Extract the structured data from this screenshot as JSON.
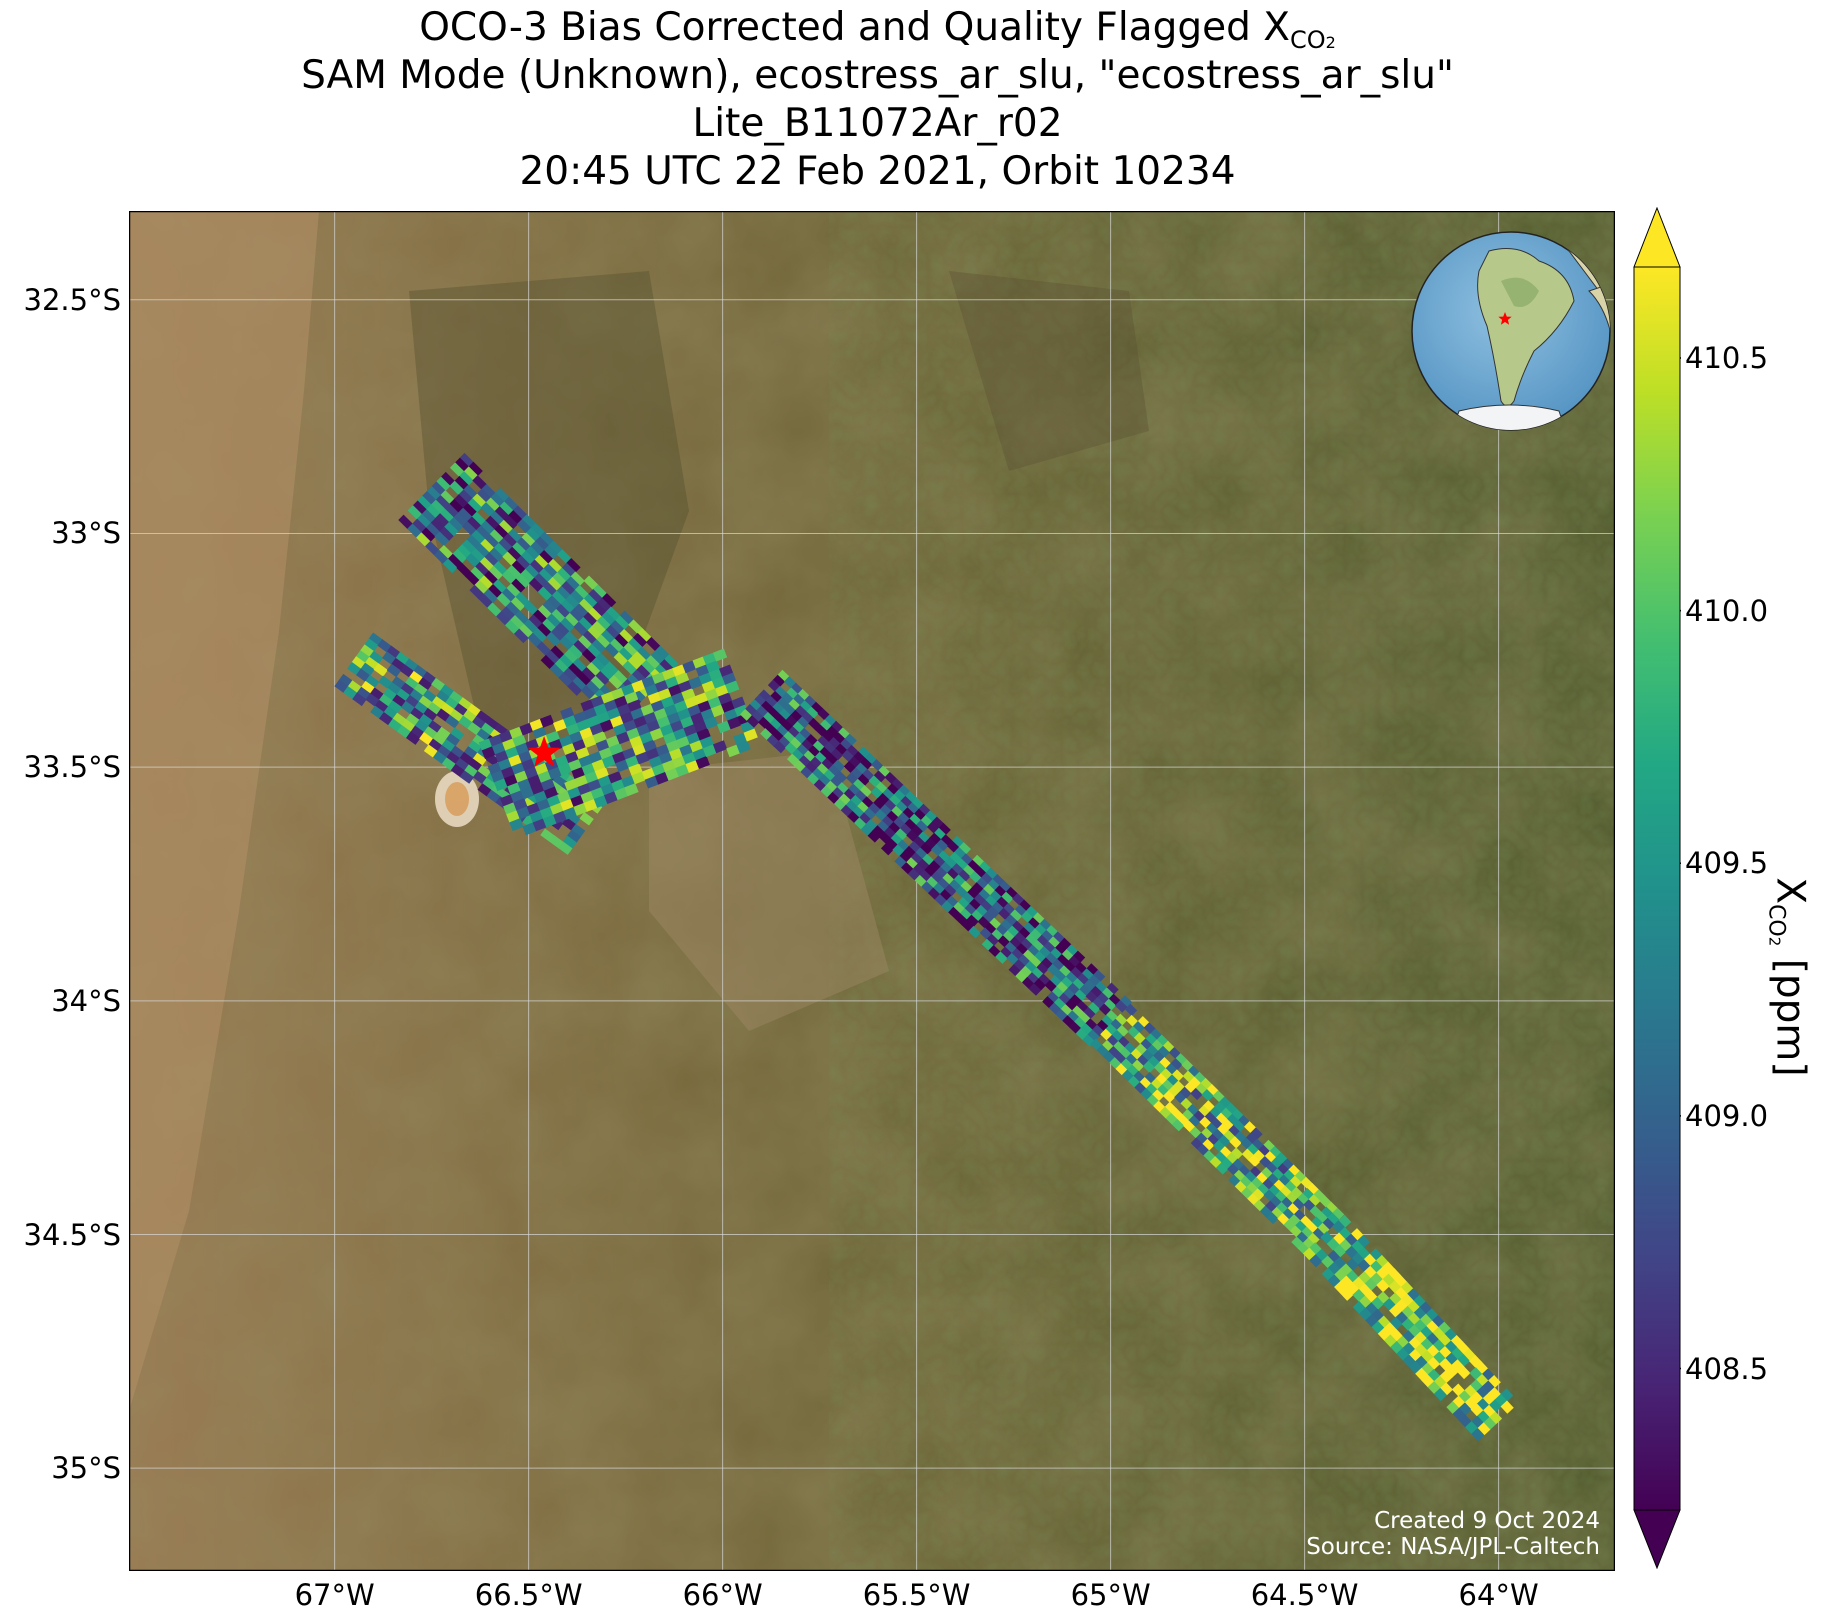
{
  "title": {
    "line1_prefix": "OCO-3 Bias Corrected and Quality Flagged X",
    "line1_sub": "CO",
    "line1_sub2": "2",
    "line2": "SAM Mode (Unknown), ecostress_ar_slu, \"ecostress_ar_slu\"",
    "line3": "Lite_B11072Ar_r02",
    "line4": "20:45 UTC 22 Feb 2021, Orbit 10234"
  },
  "map": {
    "lon_range": [
      -67.53,
      -63.7
    ],
    "lat_range": [
      -35.22,
      -32.31
    ],
    "lat_ticks": [
      {
        "value": -32.5,
        "label": "32.5°S"
      },
      {
        "value": -33.0,
        "label": "33°S"
      },
      {
        "value": -33.5,
        "label": "33.5°S"
      },
      {
        "value": -34.0,
        "label": "34°S"
      },
      {
        "value": -34.5,
        "label": "34.5°S"
      },
      {
        "value": -35.0,
        "label": "35°S"
      }
    ],
    "lon_ticks": [
      {
        "value": -67.0,
        "label": "67°W"
      },
      {
        "value": -66.5,
        "label": "66.5°W"
      },
      {
        "value": -66.0,
        "label": "66°W"
      },
      {
        "value": -65.5,
        "label": "65.5°W"
      },
      {
        "value": -65.0,
        "label": "65°W"
      },
      {
        "value": -64.5,
        "label": "64.5°W"
      },
      {
        "value": -64.0,
        "label": "64°W"
      }
    ],
    "target": {
      "lon": -66.46,
      "lat": -33.47,
      "color": "#ff0000"
    },
    "basemap": "satellite-imagery",
    "inset": "globe-south-america-locator"
  },
  "swaths": [
    {
      "name": "north-cluster",
      "p0": [
        -66.75,
        -32.9
      ],
      "p1": [
        -66.2,
        -33.35
      ],
      "width": 0.2,
      "rows": 24,
      "cols": 14,
      "bias": -0.4,
      "seed": 11
    },
    {
      "name": "west-arm",
      "p0": [
        -66.95,
        -33.27
      ],
      "p1": [
        -66.35,
        -33.63
      ],
      "width": 0.14,
      "rows": 26,
      "cols": 9,
      "bias": 0.1,
      "seed": 23
    },
    {
      "name": "center-cluster",
      "p0": [
        -66.58,
        -33.55
      ],
      "p1": [
        -65.95,
        -33.35
      ],
      "width": 0.22,
      "rows": 24,
      "cols": 12,
      "bias": 0.0,
      "seed": 37
    },
    {
      "name": "main-swath-north",
      "p0": [
        -65.9,
        -33.34
      ],
      "p1": [
        -65.0,
        -34.05
      ],
      "width": 0.13,
      "rows": 52,
      "cols": 9,
      "bias": -0.8,
      "seed": 41
    },
    {
      "name": "main-swath-middle",
      "p0": [
        -65.0,
        -34.05
      ],
      "p1": [
        -64.45,
        -34.5
      ],
      "width": 0.12,
      "rows": 34,
      "cols": 8,
      "bias": 0.6,
      "seed": 53
    },
    {
      "name": "main-swath-south",
      "p0": [
        -64.45,
        -34.5
      ],
      "p1": [
        -64.0,
        -34.9
      ],
      "width": 0.12,
      "rows": 28,
      "cols": 7,
      "bias": 1.2,
      "seed": 67
    }
  ],
  "colorbar": {
    "label_prefix": "X",
    "label_sub": "CO",
    "label_sub2": "2",
    "label_suffix": " [ppm]",
    "vmin": 408.22,
    "vmax": 410.68,
    "colormap": "viridis",
    "extend": "both",
    "ticks": [
      {
        "value": 408.5,
        "label": "408.5"
      },
      {
        "value": 409.0,
        "label": "409.0"
      },
      {
        "value": 409.5,
        "label": "409.5"
      },
      {
        "value": 410.0,
        "label": "410.0"
      },
      {
        "value": 410.5,
        "label": "410.5"
      }
    ]
  },
  "credit": {
    "line1": "Created 9 Oct 2024",
    "line2": "Source: NASA/JPL-Caltech"
  }
}
